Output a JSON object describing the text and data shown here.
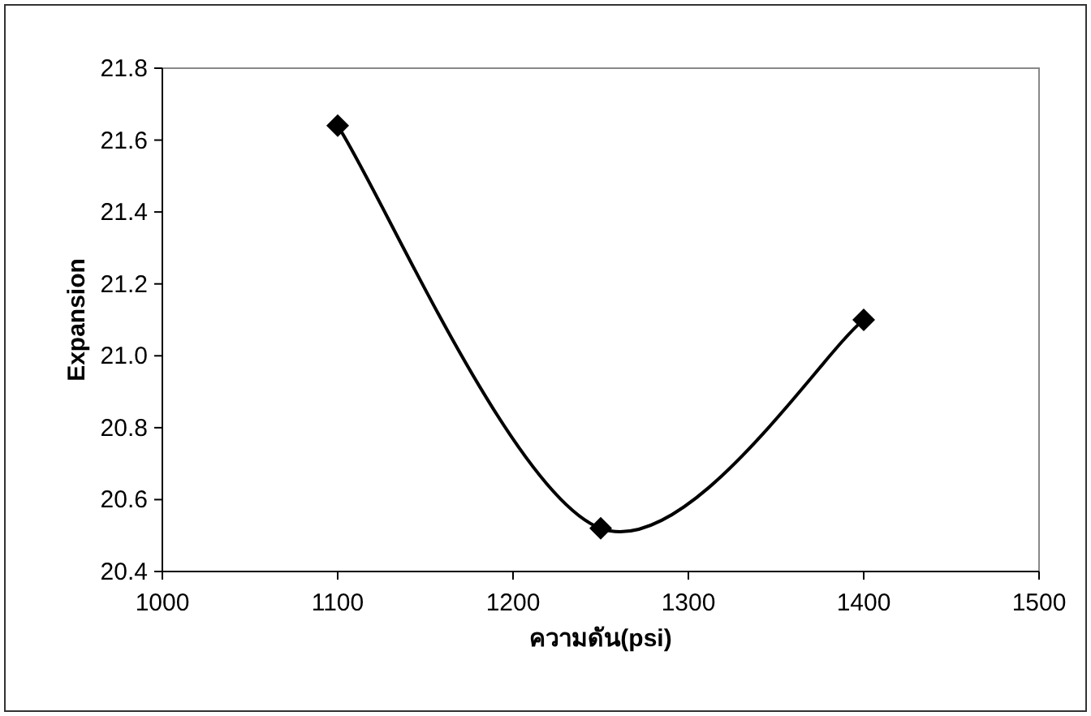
{
  "chart_data": {
    "type": "line",
    "xlabel": "ความดัน(psi)",
    "ylabel": "Expansion",
    "x": [
      1100,
      1250,
      1400
    ],
    "series": [
      {
        "color": "#000000",
        "values": [
          21.64,
          20.52,
          21.1
        ]
      }
    ],
    "marker": "diamond",
    "line_style": "solid",
    "xlim": [
      1000,
      1500
    ],
    "xticks": [
      1000,
      1100,
      1200,
      1300,
      1400,
      1500
    ],
    "ylim": [
      20.4,
      21.8
    ],
    "yticks": [
      {
        "value": 20.4,
        "label": "20.4"
      },
      {
        "value": 20.6,
        "label": "20.6"
      },
      {
        "value": 20.8,
        "label": "20.8"
      },
      {
        "value": 21.0,
        "label": "21.0"
      },
      {
        "value": 21.2,
        "label": "21.2"
      },
      {
        "value": 21.4,
        "label": "21.4"
      },
      {
        "value": 21.6,
        "label": "21.6"
      },
      {
        "value": 21.8,
        "label": "21.8"
      }
    ]
  }
}
